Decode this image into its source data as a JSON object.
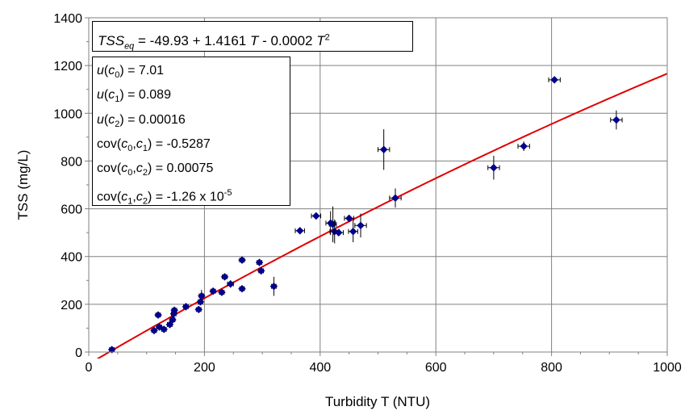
{
  "chart_data": {
    "type": "scatter",
    "xlabel": "Turbidity T (NTU)",
    "ylabel": "TSS (mg/L)",
    "xlim": [
      0,
      1000
    ],
    "ylim": [
      0,
      1400
    ],
    "xticks": [
      "0",
      "200",
      "400",
      "600",
      "800",
      "1000"
    ],
    "yticks": [
      "0",
      "200",
      "400",
      "600",
      "800",
      "1000",
      "1200",
      "1400"
    ],
    "grid": true,
    "legend": "none",
    "colors": {
      "points": "#00008B",
      "fit": "#e00000",
      "error_bars": "#000000"
    },
    "equation_text": "TSS_eq = -49.93 + 1.4161 T - 0.0002 T^2",
    "uncertainties": [
      "u(c0) = 7.01",
      "u(c1) = 0.089",
      "u(c2) = 0.00016",
      "cov(c0,c1) = -0.5287",
      "cov(c0,c2) = 0.00075",
      "cov(c1,c2) = -1.26 x 10^-5"
    ],
    "fit": {
      "c0": -49.93,
      "c1": 1.4161,
      "c2": -0.0002
    },
    "points": [
      {
        "x": 40,
        "y": 10,
        "xerr": 4,
        "yerr": 0
      },
      {
        "x": 113,
        "y": 90,
        "xerr": 4,
        "yerr": 0
      },
      {
        "x": 120,
        "y": 155,
        "xerr": 4,
        "yerr": 0
      },
      {
        "x": 122,
        "y": 105,
        "xerr": 4,
        "yerr": 0
      },
      {
        "x": 130,
        "y": 95,
        "xerr": 4,
        "yerr": 0
      },
      {
        "x": 140,
        "y": 115,
        "xerr": 4,
        "yerr": 0
      },
      {
        "x": 145,
        "y": 135,
        "xerr": 4,
        "yerr": 0
      },
      {
        "x": 147,
        "y": 160,
        "xerr": 4,
        "yerr": 0
      },
      {
        "x": 148,
        "y": 175,
        "xerr": 4,
        "yerr": 0
      },
      {
        "x": 168,
        "y": 190,
        "xerr": 4,
        "yerr": 15
      },
      {
        "x": 190,
        "y": 178,
        "xerr": 4,
        "yerr": 0
      },
      {
        "x": 193,
        "y": 210,
        "xerr": 4,
        "yerr": 0
      },
      {
        "x": 195,
        "y": 235,
        "xerr": 4,
        "yerr": 25
      },
      {
        "x": 215,
        "y": 255,
        "xerr": 4,
        "yerr": 0
      },
      {
        "x": 230,
        "y": 250,
        "xerr": 4,
        "yerr": 0
      },
      {
        "x": 235,
        "y": 315,
        "xerr": 4,
        "yerr": 0
      },
      {
        "x": 245,
        "y": 285,
        "xerr": 5,
        "yerr": 15
      },
      {
        "x": 265,
        "y": 265,
        "xerr": 4,
        "yerr": 0
      },
      {
        "x": 265,
        "y": 385,
        "xerr": 4,
        "yerr": 0
      },
      {
        "x": 295,
        "y": 375,
        "xerr": 4,
        "yerr": 0
      },
      {
        "x": 298,
        "y": 340,
        "xerr": 4,
        "yerr": 15
      },
      {
        "x": 320,
        "y": 275,
        "xerr": 4,
        "yerr": 40
      },
      {
        "x": 365,
        "y": 508,
        "xerr": 8,
        "yerr": 0
      },
      {
        "x": 393,
        "y": 570,
        "xerr": 8,
        "yerr": 0
      },
      {
        "x": 418,
        "y": 540,
        "xerr": 8,
        "yerr": 50
      },
      {
        "x": 422,
        "y": 535,
        "xerr": 6,
        "yerr": 75
      },
      {
        "x": 425,
        "y": 505,
        "xerr": 8,
        "yerr": 50
      },
      {
        "x": 432,
        "y": 500,
        "xerr": 8,
        "yerr": 0
      },
      {
        "x": 450,
        "y": 560,
        "xerr": 8,
        "yerr": 0
      },
      {
        "x": 457,
        "y": 505,
        "xerr": 8,
        "yerr": 45
      },
      {
        "x": 470,
        "y": 530,
        "xerr": 10,
        "yerr": 50
      },
      {
        "x": 510,
        "y": 848,
        "xerr": 10,
        "yerr": 85
      },
      {
        "x": 530,
        "y": 645,
        "xerr": 10,
        "yerr": 40
      },
      {
        "x": 700,
        "y": 772,
        "xerr": 10,
        "yerr": 50
      },
      {
        "x": 752,
        "y": 862,
        "xerr": 10,
        "yerr": 20
      },
      {
        "x": 805,
        "y": 1140,
        "xerr": 10,
        "yerr": 0
      },
      {
        "x": 912,
        "y": 972,
        "xerr": 10,
        "yerr": 40
      }
    ]
  }
}
